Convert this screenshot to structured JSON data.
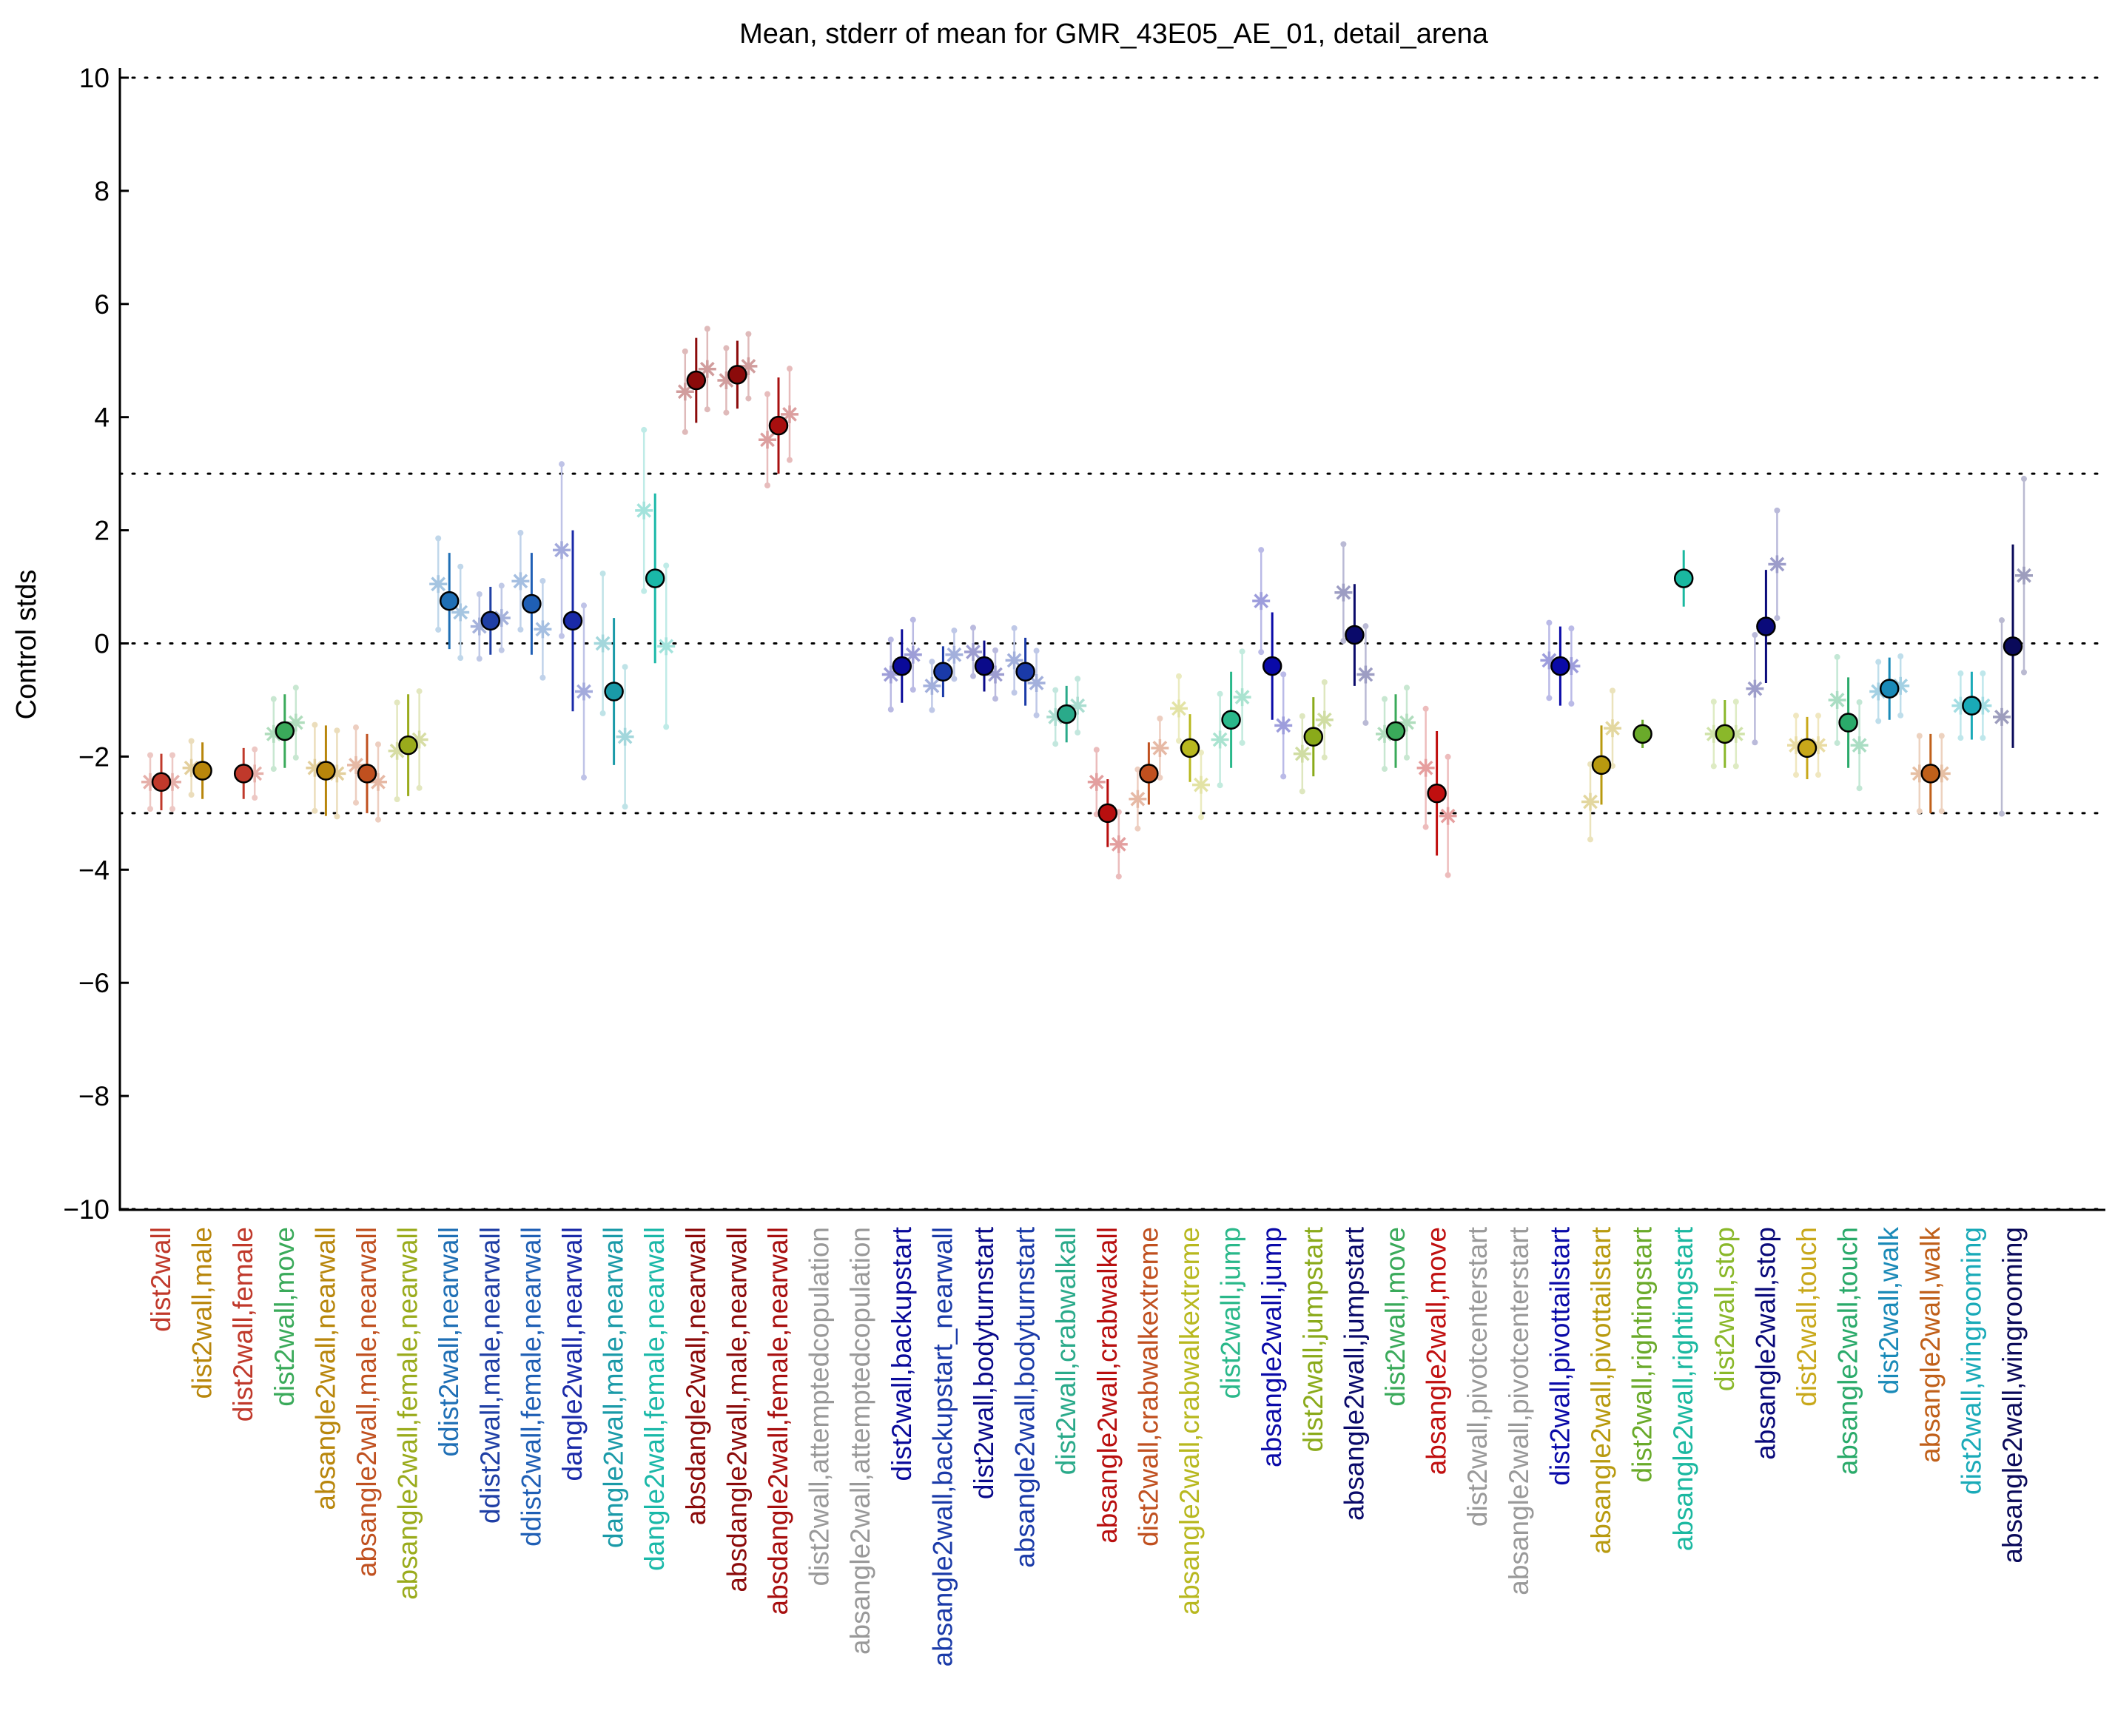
{
  "chart_data": {
    "type": "scatter",
    "title": "Mean, stderr of mean for GMR_43E05_AE_01, detail_arena",
    "xlabel": "",
    "ylabel": "Control stds",
    "ylim": [
      -10,
      10
    ],
    "yticks": [
      "10",
      "8",
      "6",
      "4",
      "2",
      "0",
      "−2",
      "−4",
      "−6",
      "−8",
      "−10"
    ],
    "reference_lines": [
      10,
      3,
      0,
      -3,
      -10
    ],
    "grid": false,
    "legend": "none",
    "categories": [
      {
        "label": "dist2wall",
        "color": "#c0392b",
        "mean": -2.45,
        "err": 0.5,
        "m": -2.45,
        "f": -2.45
      },
      {
        "label": "dist2wall,male",
        "color": "#b8860b",
        "mean": -2.25,
        "err": 0.5,
        "m": -2.2,
        "f": null
      },
      {
        "label": "dist2wall,female",
        "color": "#c0392b",
        "mean": -2.3,
        "err": 0.45,
        "m": null,
        "f": -2.3
      },
      {
        "label": "dist2wall,move",
        "color": "#3aaa5a",
        "mean": -1.55,
        "err": 0.65,
        "m": -1.6,
        "f": -1.4
      },
      {
        "label": "absangle2wall,nearwall",
        "color": "#b8860b",
        "mean": -2.25,
        "err": 0.8,
        "m": -2.2,
        "f": -2.3
      },
      {
        "label": "absangle2wall,male,nearwall",
        "color": "#c0501f",
        "mean": -2.3,
        "err": 0.7,
        "m": -2.15,
        "f": -2.45
      },
      {
        "label": "absangle2wall,female,nearwall",
        "color": "#9aab1c",
        "mean": -1.8,
        "err": 0.9,
        "m": -1.9,
        "f": -1.7
      },
      {
        "label": "ddist2wall,nearwall",
        "color": "#1f6fb5",
        "mean": 0.75,
        "err": 0.85,
        "m": 1.05,
        "f": 0.55
      },
      {
        "label": "ddist2wall,male,nearwall",
        "color": "#1f3fa5",
        "mean": 0.4,
        "err": 0.6,
        "m": 0.3,
        "f": 0.45
      },
      {
        "label": "ddist2wall,female,nearwall",
        "color": "#1f5fb5",
        "mean": 0.7,
        "err": 0.9,
        "m": 1.1,
        "f": 0.25
      },
      {
        "label": "dangle2wall,nearwall",
        "color": "#1a2aa8",
        "mean": 0.4,
        "err": 1.6,
        "m": 1.65,
        "f": -0.85
      },
      {
        "label": "dangle2wall,male,nearwall",
        "color": "#1a9aa8",
        "mean": -0.85,
        "err": 1.3,
        "m": 0.0,
        "f": -1.65
      },
      {
        "label": "dangle2wall,female,nearwall",
        "color": "#1ab8a8",
        "mean": 1.15,
        "err": 1.5,
        "m": 2.35,
        "f": -0.05
      },
      {
        "label": "absdangle2wall,nearwall",
        "color": "#8b0a0a",
        "mean": 4.65,
        "err": 0.75,
        "m": 4.45,
        "f": 4.85
      },
      {
        "label": "absdangle2wall,male,nearwall",
        "color": "#8b0a0a",
        "mean": 4.75,
        "err": 0.6,
        "m": 4.65,
        "f": 4.9
      },
      {
        "label": "absdangle2wall,female,nearwall",
        "color": "#a80f0f",
        "mean": 3.85,
        "err": 0.85,
        "m": 3.6,
        "f": 4.05
      },
      {
        "label": "dist2wall,attemptedcopulation",
        "color": "#999999",
        "mean": null,
        "err": null,
        "m": null,
        "f": null
      },
      {
        "label": "absangle2wall,attemptedcopulation",
        "color": "#999999",
        "mean": null,
        "err": null,
        "m": null,
        "f": null
      },
      {
        "label": "dist2wall,backupstart",
        "color": "#0a0a9a",
        "mean": -0.4,
        "err": 0.65,
        "m": -0.55,
        "f": -0.2
      },
      {
        "label": "absangle2wall,backupstart_nearwall",
        "color": "#1a3aa8",
        "mean": -0.5,
        "err": 0.45,
        "m": -0.75,
        "f": -0.2
      },
      {
        "label": "dist2wall,bodyturnstart",
        "color": "#0a0a8a",
        "mean": -0.4,
        "err": 0.45,
        "m": -0.15,
        "f": -0.55
      },
      {
        "label": "absangle2wall,bodyturnstart",
        "color": "#1a3aa8",
        "mean": -0.5,
        "err": 0.6,
        "m": -0.3,
        "f": -0.7
      },
      {
        "label": "dist2wall,crabwalkall",
        "color": "#2aaa8a",
        "mean": -1.25,
        "err": 0.5,
        "m": -1.3,
        "f": -1.1
      },
      {
        "label": "absangle2wall,crabwalkall",
        "color": "#b80f0f",
        "mean": -3.0,
        "err": 0.6,
        "m": -2.45,
        "f": -3.55
      },
      {
        "label": "dist2wall,crabwalkextreme",
        "color": "#c0501f",
        "mean": -2.3,
        "err": 0.55,
        "m": -2.75,
        "f": -1.85
      },
      {
        "label": "absangle2wall,crabwalkextreme",
        "color": "#b8b81f",
        "mean": -1.85,
        "err": 0.6,
        "m": -1.15,
        "f": -2.5
      },
      {
        "label": "dist2wall,jump",
        "color": "#2ab88a",
        "mean": -1.35,
        "err": 0.85,
        "m": -1.7,
        "f": -0.95
      },
      {
        "label": "absangle2wall,jump",
        "color": "#0a0aa8",
        "mean": -0.4,
        "err": 0.95,
        "m": 0.75,
        "f": -1.45
      },
      {
        "label": "dist2wall,jumpstart",
        "color": "#8aaa1a",
        "mean": -1.65,
        "err": 0.7,
        "m": -1.95,
        "f": -1.35
      },
      {
        "label": "absangle2wall,jumpstart",
        "color": "#0a0a6a",
        "mean": 0.15,
        "err": 0.9,
        "m": 0.9,
        "f": -0.55
      },
      {
        "label": "dist2wall,move",
        "color": "#3aaa5a",
        "mean": -1.55,
        "err": 0.65,
        "m": -1.6,
        "f": -1.4
      },
      {
        "label": "absangle2wall,move",
        "color": "#c00f0f",
        "mean": -2.65,
        "err": 1.1,
        "m": -2.2,
        "f": -3.05
      },
      {
        "label": "dist2wall,pivotcenterstart",
        "color": "#999999",
        "mean": null,
        "err": null,
        "m": null,
        "f": null
      },
      {
        "label": "absangle2wall,pivotcenterstart",
        "color": "#999999",
        "mean": null,
        "err": null,
        "m": null,
        "f": null
      },
      {
        "label": "dist2wall,pivottailstart",
        "color": "#0a0aa8",
        "mean": -0.4,
        "err": 0.7,
        "m": -0.3,
        "f": -0.4
      },
      {
        "label": "absangle2wall,pivottailstart",
        "color": "#b89a0f",
        "mean": -2.15,
        "err": 0.7,
        "m": -2.8,
        "f": -1.5
      },
      {
        "label": "dist2wall,rightingstart",
        "color": "#6aaa2a",
        "mean": -1.6,
        "err": 0.25,
        "m": null,
        "f": null
      },
      {
        "label": "absangle2wall,rightingstart",
        "color": "#1ab8a0",
        "mean": 1.15,
        "err": 0.5,
        "m": null,
        "f": null
      },
      {
        "label": "dist2wall,stop",
        "color": "#8ab82a",
        "mean": -1.6,
        "err": 0.6,
        "m": -1.6,
        "f": -1.6
      },
      {
        "label": "absangle2wall,stop",
        "color": "#0a0a7a",
        "mean": 0.3,
        "err": 1.0,
        "m": -0.8,
        "f": 1.4
      },
      {
        "label": "dist2wall,touch",
        "color": "#c8a81a",
        "mean": -1.85,
        "err": 0.55,
        "m": -1.8,
        "f": -1.8
      },
      {
        "label": "absangle2wall,touch",
        "color": "#2aaa6a",
        "mean": -1.4,
        "err": 0.8,
        "m": -1.0,
        "f": -1.8
      },
      {
        "label": "dist2wall,walk",
        "color": "#1a8ab8",
        "mean": -0.8,
        "err": 0.55,
        "m": -0.85,
        "f": -0.75
      },
      {
        "label": "absangle2wall,walk",
        "color": "#c0601a",
        "mean": -2.3,
        "err": 0.7,
        "m": -2.3,
        "f": -2.3
      },
      {
        "label": "dist2wall,wingrooming",
        "color": "#1aaab8",
        "mean": -1.1,
        "err": 0.6,
        "m": -1.1,
        "f": -1.1
      },
      {
        "label": "absangle2wall,wingrooming",
        "color": "#0a0a5a",
        "mean": -0.05,
        "err": 1.8,
        "m": -1.3,
        "f": 1.2
      }
    ]
  }
}
